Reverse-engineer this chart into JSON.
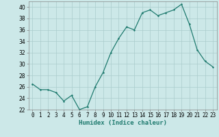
{
  "x": [
    0,
    1,
    2,
    3,
    4,
    5,
    6,
    7,
    8,
    9,
    10,
    11,
    12,
    13,
    14,
    15,
    16,
    17,
    18,
    19,
    20,
    21,
    22,
    23
  ],
  "y": [
    26.5,
    25.5,
    25.5,
    25.0,
    23.5,
    24.5,
    22.0,
    22.5,
    26.0,
    28.5,
    32.0,
    34.5,
    36.5,
    36.0,
    39.0,
    39.5,
    38.5,
    39.0,
    39.5,
    40.5,
    37.0,
    32.5,
    30.5,
    29.5
  ],
  "xlabel": "Humidex (Indice chaleur)",
  "ylim": [
    22,
    41
  ],
  "xlim": [
    -0.5,
    23.5
  ],
  "yticks": [
    22,
    24,
    26,
    28,
    30,
    32,
    34,
    36,
    38,
    40
  ],
  "xticks": [
    0,
    1,
    2,
    3,
    4,
    5,
    6,
    7,
    8,
    9,
    10,
    11,
    12,
    13,
    14,
    15,
    16,
    17,
    18,
    19,
    20,
    21,
    22,
    23
  ],
  "line_color": "#1e7a6e",
  "marker_color": "#1e7a6e",
  "bg_color": "#cce8e8",
  "grid_color": "#aacccc",
  "label_color": "#1e7a6e",
  "tick_label_fontsize": 5.5,
  "xlabel_fontsize": 6.5
}
